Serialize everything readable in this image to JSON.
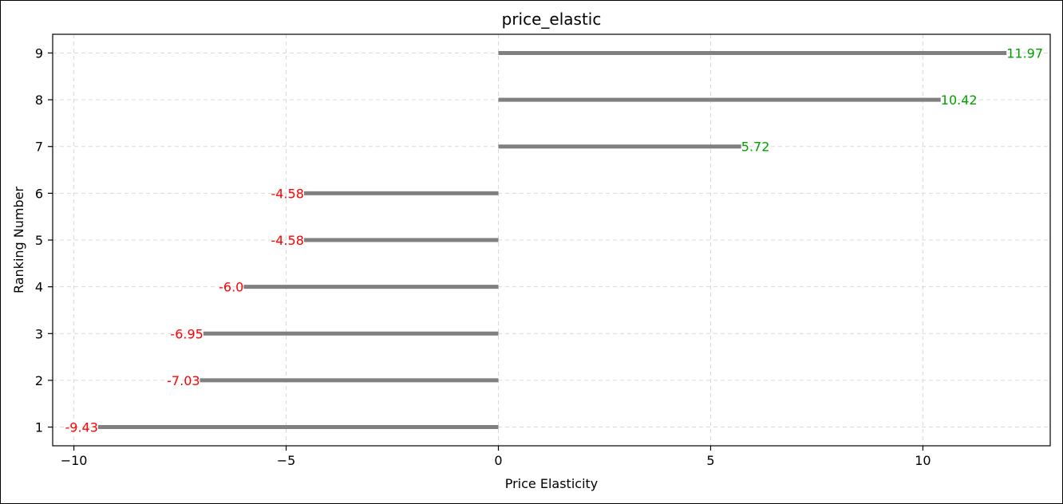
{
  "chart_data": {
    "type": "bar",
    "orientation": "horizontal",
    "title": "price_elastic",
    "xlabel": "Price Elasticity",
    "ylabel": "Ranking Number",
    "categories": [
      "1",
      "2",
      "3",
      "4",
      "5",
      "6",
      "7",
      "8",
      "9"
    ],
    "values": [
      -9.43,
      -7.03,
      -6.95,
      -6.0,
      -4.58,
      -4.58,
      5.72,
      10.42,
      11.97
    ],
    "data_labels": [
      "-9.43",
      "-7.03",
      "-6.95",
      "-6.0",
      "-4.58",
      "-4.58",
      "5.72",
      "10.42",
      "11.97"
    ],
    "xlim": [
      -10.5,
      13.0
    ],
    "ylim": [
      0.6,
      9.4
    ],
    "xticks": [
      -10,
      -5,
      0,
      5,
      10
    ],
    "xtick_labels": [
      "−10",
      "−5",
      "0",
      "5",
      "10"
    ],
    "yticks": [
      1,
      2,
      3,
      4,
      5,
      6,
      7,
      8,
      9
    ],
    "ytick_labels": [
      "1",
      "2",
      "3",
      "4",
      "5",
      "6",
      "7",
      "8",
      "9"
    ],
    "grid": true,
    "legend": "none",
    "colors": {
      "bar": "#808080",
      "positive_label": "#00a000",
      "negative_label": "#ff0000",
      "grid": "#d9d9d9",
      "axis": "#000000"
    }
  }
}
